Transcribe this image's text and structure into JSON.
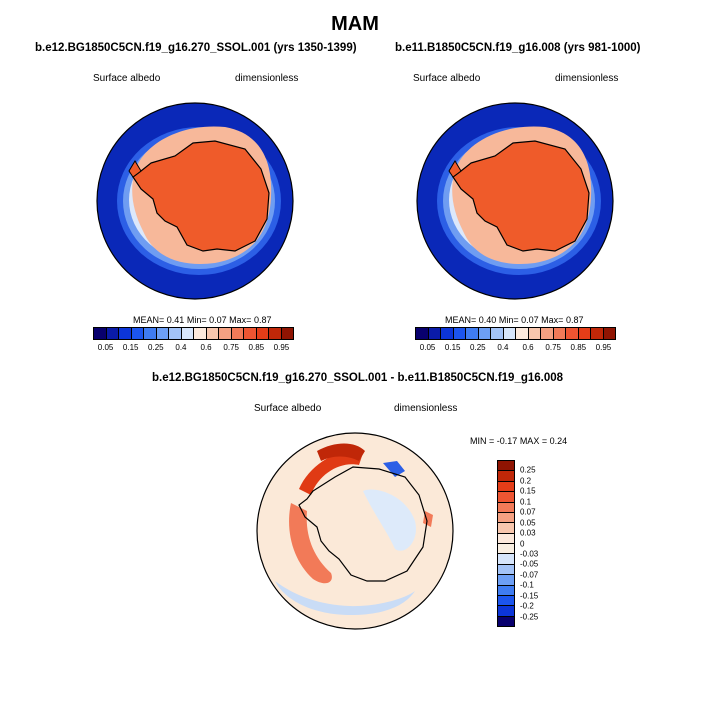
{
  "season": "MAM",
  "left_panel": {
    "title": "b.e12.BG1850C5CN.f19_g16.270_SSOL.001 (yrs 1350-1399)",
    "variable": "Surface albedo",
    "units": "dimensionless",
    "mean_label": "MEAN=",
    "mean": "0.41",
    "min_label": "Min=",
    "min": "0.07",
    "max_label": "Max=",
    "max": "0.87"
  },
  "right_panel": {
    "title": "b.e11.B1850C5CN.f19_g16.008 (yrs 981-1000)",
    "variable": "Surface albedo",
    "units": "dimensionless",
    "mean_label": "MEAN=",
    "mean": "0.40",
    "min_label": "Min=",
    "min": "0.07",
    "max_label": "Max=",
    "max": "0.87"
  },
  "diff_panel": {
    "title": "b.e12.BG1850C5CN.f19_g16.270_SSOL.001 - b.e11.B1850C5CN.f19_g16.008",
    "variable": "Surface albedo",
    "units": "dimensionless",
    "min_label": "MIN =",
    "min": "-0.17",
    "max_label": "MAX =",
    "max": "0.24"
  },
  "albedo_colorbar": {
    "colors": [
      "#08006e",
      "#0a1ba8",
      "#0c35d8",
      "#1c55ee",
      "#3f7cf2",
      "#6d9ff5",
      "#a3c3f7",
      "#d6e5fb",
      "#fce9dc",
      "#f8c7ae",
      "#f5a182",
      "#f27a58",
      "#ee5532",
      "#e43d18",
      "#c02708",
      "#8f1402"
    ],
    "labels": [
      "0.05",
      "0.15",
      "0.25",
      "0.4",
      "0.6",
      "0.75",
      "0.85",
      "0.95"
    ]
  },
  "diff_colorbar": {
    "colors": [
      "#8f1402",
      "#c02708",
      "#e43d18",
      "#ee5532",
      "#f27a58",
      "#f5a182",
      "#f8c7ae",
      "#fce9dc",
      "#f9efe2",
      "#d6e5fb",
      "#a3c3f7",
      "#6d9ff5",
      "#3f7cf2",
      "#1c55ee",
      "#0c35d8",
      "#08006e"
    ],
    "labels": [
      "0.25",
      "0.2",
      "0.15",
      "0.1",
      "0.07",
      "0.05",
      "0.03",
      "0",
      "-0.03",
      "-0.05",
      "-0.07",
      "-0.1",
      "-0.15",
      "-0.2",
      "-0.25"
    ]
  },
  "map_colors": {
    "ocean": "#0a28b8",
    "ice_edge_1": "#2c5fe6",
    "ice_edge_2": "#6f9df2",
    "ice_edge_3": "#dce8fb",
    "sea_ice": "#f7b89a",
    "continent": "#ef5b2a",
    "diff_background": "#fbe9d8",
    "diff_positive": "#e03a14",
    "diff_negative": "#c9dcf6"
  }
}
